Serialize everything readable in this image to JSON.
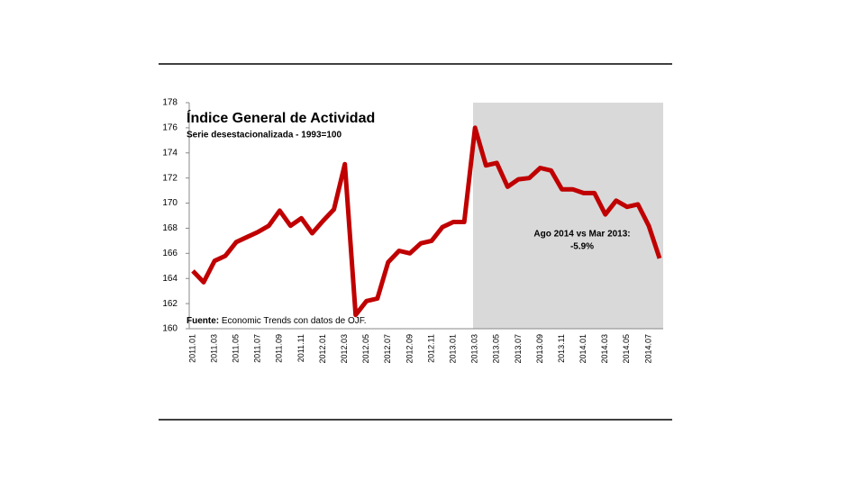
{
  "chart_data": {
    "type": "line",
    "title": "Índice General de Actividad",
    "subtitle": "Serie desestacionalizada - 1993=100",
    "source": {
      "label": "Fuente:",
      "text": "Economic Trends con datos de OJF."
    },
    "annotation": [
      "Ago 2014 vs Mar 2013:",
      "-5.9%"
    ],
    "categories": [
      "2011.01",
      null,
      "2011.03",
      null,
      "2011.05",
      null,
      "2011.07",
      null,
      "2011.09",
      null,
      "2011.11",
      null,
      "2012.01",
      null,
      "2012.03",
      null,
      "2012.05",
      null,
      "2012.07",
      null,
      "2012.09",
      null,
      "2012.11",
      null,
      "2013.01",
      null,
      "2013.03",
      null,
      "2013.05",
      null,
      "2013.07",
      null,
      "2013.09",
      null,
      "2013.11",
      null,
      "2014.01",
      null,
      "2014.03",
      null,
      "2014.05",
      null,
      "2014.07",
      null
    ],
    "series": [
      {
        "color": "#c00000",
        "values": [
          164.6,
          163.7,
          165.4,
          165.8,
          166.9,
          167.3,
          167.7,
          168.2,
          169.4,
          168.2,
          168.8,
          167.6,
          168.6,
          169.5,
          173.1,
          161.1,
          162.2,
          162.4,
          165.3,
          166.2,
          166.0,
          166.8,
          167.0,
          168.1,
          168.5,
          168.5,
          176.0,
          173.0,
          173.2,
          171.3,
          171.9,
          172.0,
          172.8,
          172.6,
          171.1,
          171.1,
          170.8,
          170.8,
          169.1,
          170.2,
          169.7,
          169.9,
          168.2,
          165.6
        ]
      }
    ],
    "ylim": [
      160,
      178
    ],
    "yticks": [
      160,
      162,
      164,
      166,
      168,
      170,
      172,
      174,
      176,
      178
    ],
    "grid": false
  }
}
